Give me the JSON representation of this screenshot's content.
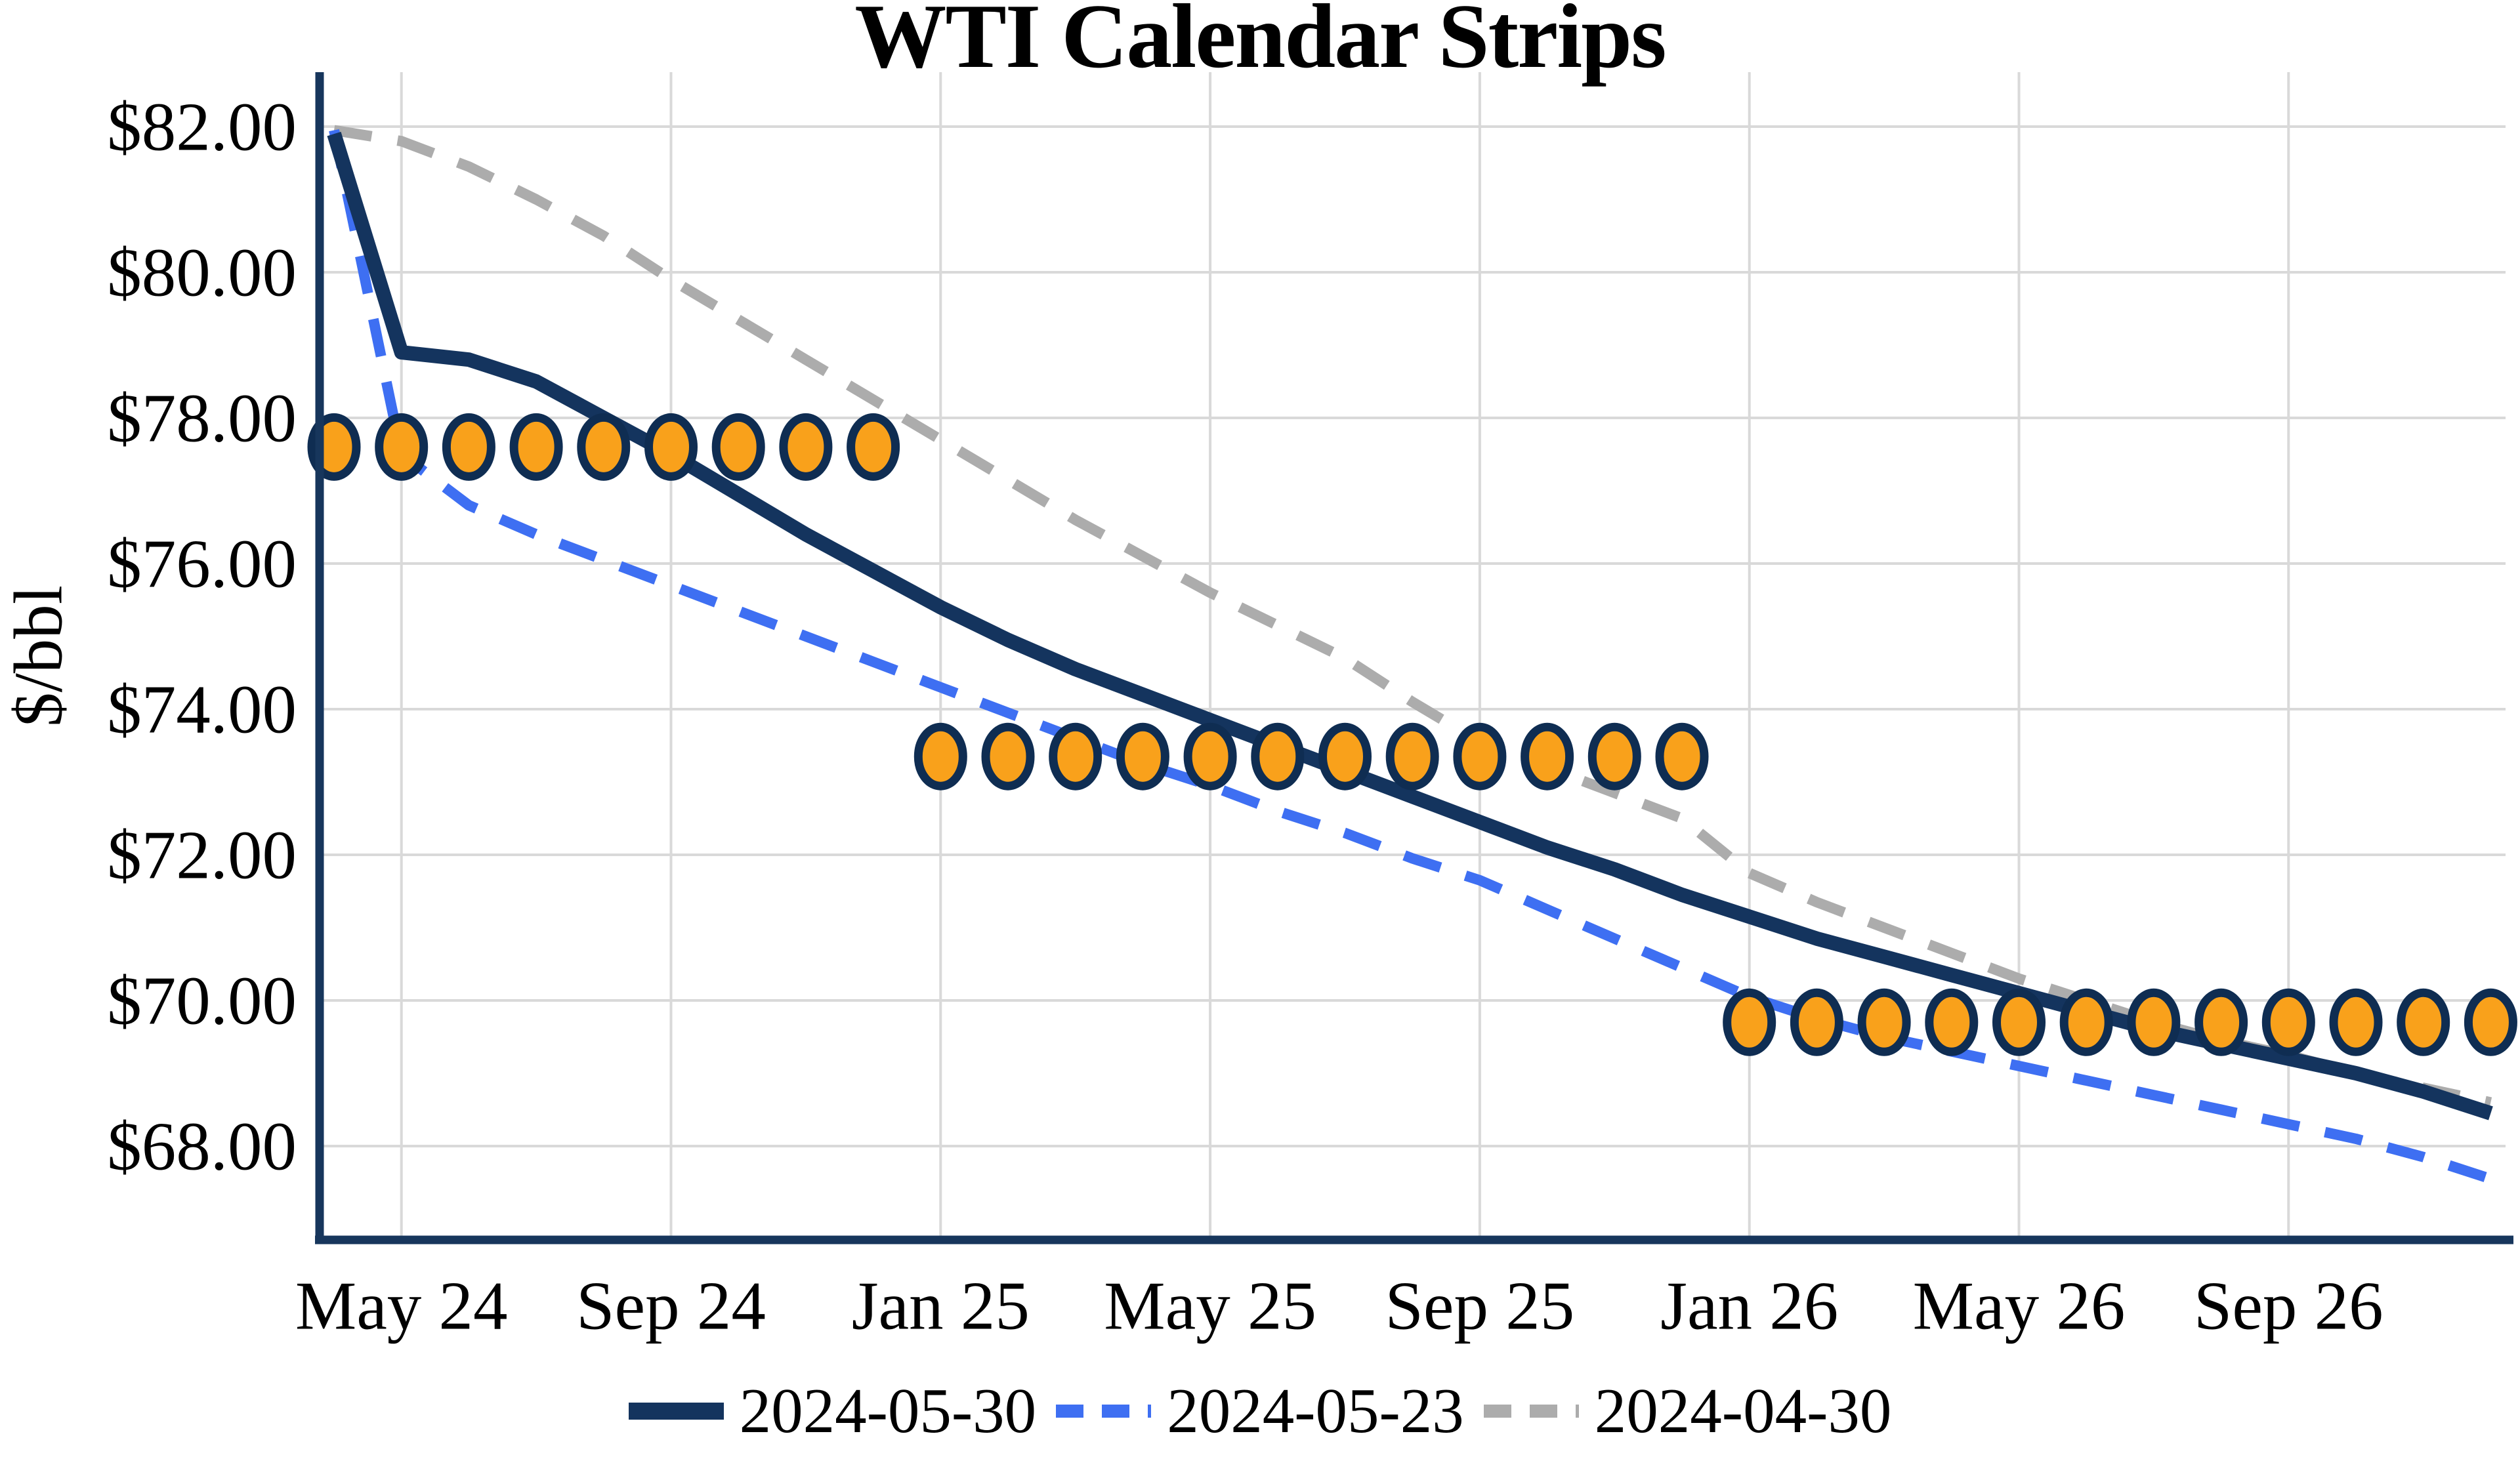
{
  "title": "WTI Calendar Strips",
  "y_axis_title": "$/bbl",
  "legend": [
    {
      "label": "2024-05-30",
      "line_style": "solid",
      "color": "#14345E"
    },
    {
      "label": "2024-05-23",
      "line_style": "dashed",
      "color": "#3E6FF2"
    },
    {
      "label": "2024-04-30",
      "line_style": "dashed",
      "color": "#ACACAC"
    }
  ],
  "chart_data": {
    "type": "line",
    "title": "WTI Calendar Strips",
    "xlabel": "",
    "ylabel": "$/bbl",
    "ylim": [
      66.6,
      82.8
    ],
    "grid": true,
    "legend_position": "bottom",
    "x": [
      "Apr 24",
      "May 24",
      "Jun 24",
      "Jul 24",
      "Aug 24",
      "Sep 24",
      "Oct 24",
      "Nov 24",
      "Dec 24",
      "Jan 25",
      "Feb 25",
      "Mar 25",
      "Apr 25",
      "May 25",
      "Jun 25",
      "Jul 25",
      "Aug 25",
      "Sep 25",
      "Oct 25",
      "Nov 25",
      "Dec 25",
      "Jan 26",
      "Feb 26",
      "Mar 26",
      "Apr 26",
      "May 26",
      "Jun 26",
      "Jul 26",
      "Aug 26",
      "Sep 26",
      "Oct 26",
      "Nov 26",
      "Dec 26"
    ],
    "x_ticks": [
      {
        "index": 1,
        "label": "May 24"
      },
      {
        "index": 5,
        "label": "Sep 24"
      },
      {
        "index": 9,
        "label": "Jan 25"
      },
      {
        "index": 13,
        "label": "May 25"
      },
      {
        "index": 17,
        "label": "Sep 25"
      },
      {
        "index": 21,
        "label": "Jan 26"
      },
      {
        "index": 25,
        "label": "May 26"
      },
      {
        "index": 29,
        "label": "Sep 26"
      }
    ],
    "y_ticks": [
      {
        "value": 82,
        "label": "$82.00"
      },
      {
        "value": 80,
        "label": "$80.00"
      },
      {
        "value": 78,
        "label": "$78.00"
      },
      {
        "value": 76,
        "label": "$76.00"
      },
      {
        "value": 74,
        "label": "$74.00"
      },
      {
        "value": 72,
        "label": "$72.00"
      },
      {
        "value": 70,
        "label": "$70.00"
      },
      {
        "value": 68,
        "label": "$68.00"
      }
    ],
    "series": [
      {
        "name": "2024-05-30",
        "color": "#14345E",
        "style": "solid",
        "stroke_width": 22,
        "values": [
          81.9,
          78.9,
          78.8,
          78.5,
          78.0,
          77.5,
          76.95,
          76.4,
          75.9,
          75.4,
          74.95,
          74.55,
          74.2,
          73.85,
          73.5,
          73.15,
          72.8,
          72.45,
          72.1,
          71.8,
          71.45,
          71.15,
          70.85,
          70.6,
          70.35,
          70.1,
          69.85,
          69.6,
          69.4,
          69.2,
          69.0,
          68.75,
          68.45
        ]
      },
      {
        "name": "2024-05-23",
        "color": "#3E6FF2",
        "style": "dashed",
        "stroke_width": 16,
        "values": [
          81.95,
          77.5,
          76.8,
          76.4,
          76.05,
          75.7,
          75.35,
          75.0,
          74.65,
          74.3,
          73.95,
          73.6,
          73.25,
          72.95,
          72.6,
          72.3,
          71.95,
          71.65,
          71.25,
          70.85,
          70.45,
          70.05,
          69.75,
          69.5,
          69.3,
          69.1,
          68.9,
          68.7,
          68.5,
          68.3,
          68.1,
          67.85,
          67.55
        ]
      },
      {
        "name": "2024-04-30",
        "color": "#ACACAC",
        "style": "dashed",
        "stroke_width": 16,
        "values": [
          81.95,
          81.8,
          81.45,
          81.0,
          80.5,
          79.9,
          79.35,
          78.8,
          78.25,
          77.7,
          77.15,
          76.6,
          76.1,
          75.6,
          75.15,
          74.7,
          74.1,
          73.55,
          73.2,
          72.85,
          72.5,
          71.75,
          71.35,
          71.0,
          70.65,
          70.3,
          70.0,
          69.7,
          69.45,
          69.25,
          69.0,
          68.8,
          68.6
        ]
      }
    ],
    "strip_markers": {
      "fill": "#F9A11B",
      "stroke": "#0F2D52",
      "strips": [
        {
          "value": 77.6,
          "from": "Apr 24",
          "to": "Dec 24",
          "from_index": 0,
          "to_index": 8
        },
        {
          "value": 73.35,
          "from": "Jan 25",
          "to": "Dec 25",
          "from_index": 9,
          "to_index": 20
        },
        {
          "value": 69.7,
          "from": "Jan 26",
          "to": "Dec 26",
          "from_index": 21,
          "to_index": 32
        }
      ]
    },
    "style": {
      "grid_color": "#D9D9D9",
      "axis_color": "#17365C",
      "text_color": "#000000",
      "background": "#FFFFFF"
    }
  }
}
